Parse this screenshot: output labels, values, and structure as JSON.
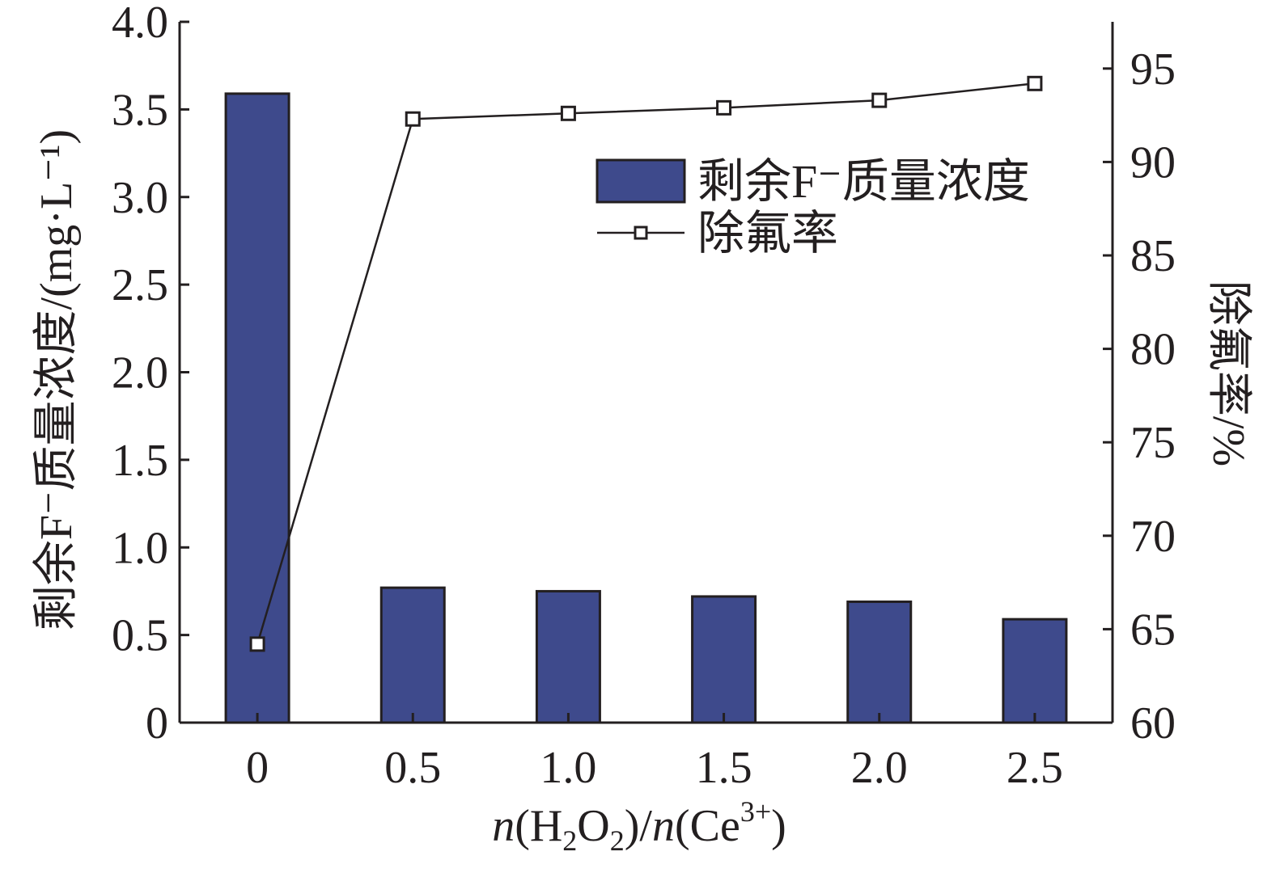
{
  "chart_data": {
    "type": "bar",
    "categories": [
      "0",
      "0.5",
      "1.0",
      "1.5",
      "2.0",
      "2.5"
    ],
    "series": [
      {
        "name": "剩余F⁻质量浓度",
        "type": "bar",
        "axis": "left",
        "values": [
          3.59,
          0.77,
          0.75,
          0.72,
          0.69,
          0.59
        ]
      },
      {
        "name": "除氟率",
        "type": "line",
        "axis": "right",
        "values": [
          64.2,
          92.3,
          92.6,
          92.9,
          93.3,
          94.2
        ]
      }
    ],
    "xlabel": {
      "n1": "n",
      "open1": "(H",
      "sub1": "2",
      "o": "O",
      "sub2": "2",
      "close1": ")/",
      "n2": "n",
      "open2": "(Ce",
      "sup": "3+",
      "close2": ")"
    },
    "ylabel_left": "剩余F⁻质量浓度/(mg·L⁻¹)",
    "ylabel_right": "除氟率/%",
    "ylim_left": [
      0,
      4.0
    ],
    "ylim_right": [
      60,
      97.5
    ],
    "yticks_left": [
      "0",
      "0.5",
      "1.0",
      "1.5",
      "2.0",
      "2.5",
      "3.0",
      "3.5",
      "4.0"
    ],
    "yticks_right": [
      "60",
      "65",
      "70",
      "75",
      "80",
      "85",
      "90",
      "95"
    ],
    "legend_position": "top-right",
    "colors": {
      "bar": "#3e4a8c",
      "line": "#231f20",
      "marker_fill": "#ffffff"
    }
  }
}
